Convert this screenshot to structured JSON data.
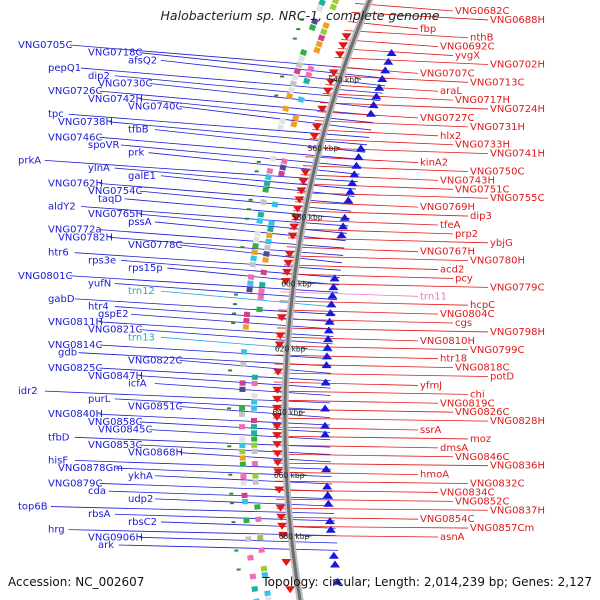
{
  "title": "Halobacterium sp. NRC-1, complete genome",
  "footer": {
    "accession": "Accession: NC_002607",
    "summary": "Topology: circular; Length: 2,014,239 bp; Genes: 2,127"
  },
  "colors": {
    "forward": "#1a1ad6",
    "reverse": "#e01818",
    "rna": "#1ea8d8",
    "pseudo": "#e878c0",
    "backbone": "#888888",
    "cds_marker": "#2a8a2a"
  },
  "ticks": [
    "540 kbp",
    "560 kbp",
    "580 kbp",
    "600 kbp",
    "620 kbp",
    "640 kbp",
    "660 kbp",
    "680 kbp"
  ],
  "left_labels": [
    {
      "t": "VNG0705C",
      "c": "fwd"
    },
    {
      "t": "VNG0718C",
      "c": "fwd"
    },
    {
      "t": "afsQ2",
      "c": "fwd"
    },
    {
      "t": "pepQ1",
      "c": "fwd"
    },
    {
      "t": "dip2",
      "c": "fwd"
    },
    {
      "t": "VNG0730C",
      "c": "fwd"
    },
    {
      "t": "VNG0726C",
      "c": "fwd"
    },
    {
      "t": "VNG0742H",
      "c": "fwd"
    },
    {
      "t": "VNG0740C",
      "c": "fwd"
    },
    {
      "t": "tpc",
      "c": "fwd"
    },
    {
      "t": "VNG0738H",
      "c": "fwd"
    },
    {
      "t": "tfbB",
      "c": "fwd"
    },
    {
      "t": "VNG0746C",
      "c": "fwd"
    },
    {
      "t": "spoVR",
      "c": "fwd"
    },
    {
      "t": "prk",
      "c": "fwd"
    },
    {
      "t": "prkA",
      "c": "fwd"
    },
    {
      "t": "ylnA",
      "c": "fwd"
    },
    {
      "t": "galE1",
      "c": "fwd"
    },
    {
      "t": "VNG0762H",
      "c": "fwd"
    },
    {
      "t": "VNG0754C",
      "c": "fwd"
    },
    {
      "t": "taqD",
      "c": "fwd"
    },
    {
      "t": "aldY2",
      "c": "fwd"
    },
    {
      "t": "VNG0765H",
      "c": "fwd"
    },
    {
      "t": "pssA",
      "c": "fwd"
    },
    {
      "t": "VNG0772a",
      "c": "fwd"
    },
    {
      "t": "VNG0782H",
      "c": "fwd"
    },
    {
      "t": "VNG0778C",
      "c": "fwd"
    },
    {
      "t": "htr6",
      "c": "fwd"
    },
    {
      "t": "rps3e",
      "c": "fwd"
    },
    {
      "t": "rps15p",
      "c": "fwd"
    },
    {
      "t": "VNG0801C",
      "c": "fwd"
    },
    {
      "t": "yufN",
      "c": "fwd"
    },
    {
      "t": "trn12",
      "c": "rna"
    },
    {
      "t": "gabD",
      "c": "fwd"
    },
    {
      "t": "htr4",
      "c": "fwd"
    },
    {
      "t": "gspE2",
      "c": "fwd"
    },
    {
      "t": "VNG0811H",
      "c": "fwd"
    },
    {
      "t": "VNG0821C",
      "c": "fwd"
    },
    {
      "t": "trn13",
      "c": "rna"
    },
    {
      "t": "VNG0814C",
      "c": "fwd"
    },
    {
      "t": "gdb",
      "c": "fwd"
    },
    {
      "t": "VNG0822C",
      "c": "fwd"
    },
    {
      "t": "VNG0825C",
      "c": "fwd"
    },
    {
      "t": "VNG0847H",
      "c": "fwd"
    },
    {
      "t": "icfA",
      "c": "fwd"
    },
    {
      "t": "idr2",
      "c": "fwd"
    },
    {
      "t": "purL",
      "c": "fwd"
    },
    {
      "t": "VNG0851C",
      "c": "fwd"
    },
    {
      "t": "VNG0840H",
      "c": "fwd"
    },
    {
      "t": "VNG0858C",
      "c": "fwd"
    },
    {
      "t": "VNG0845C",
      "c": "fwd"
    },
    {
      "t": "tfbD",
      "c": "fwd"
    },
    {
      "t": "VNG0853C",
      "c": "fwd"
    },
    {
      "t": "VNG0868H",
      "c": "fwd"
    },
    {
      "t": "hisF",
      "c": "fwd"
    },
    {
      "t": "VNG0878Gm",
      "c": "fwd"
    },
    {
      "t": "ykhA",
      "c": "fwd"
    },
    {
      "t": "VNG0879C",
      "c": "fwd"
    },
    {
      "t": "cda",
      "c": "fwd"
    },
    {
      "t": "udp2",
      "c": "fwd"
    },
    {
      "t": "top6B",
      "c": "fwd"
    },
    {
      "t": "rbsA",
      "c": "fwd"
    },
    {
      "t": "rbsC2",
      "c": "fwd"
    },
    {
      "t": "hrg",
      "c": "fwd"
    },
    {
      "t": "VNG0906H",
      "c": "fwd"
    },
    {
      "t": "ark",
      "c": "fwd"
    }
  ],
  "right_labels": [
    {
      "t": "VNG0682C",
      "c": "rev"
    },
    {
      "t": "VNG0688H",
      "c": "rev"
    },
    {
      "t": "fbp",
      "c": "rev"
    },
    {
      "t": "nthB",
      "c": "rev"
    },
    {
      "t": "VNG0692C",
      "c": "rev"
    },
    {
      "t": "yvgX",
      "c": "rev"
    },
    {
      "t": "VNG0702H",
      "c": "rev"
    },
    {
      "t": "VNG0707C",
      "c": "rev"
    },
    {
      "t": "VNG0713C",
      "c": "rev"
    },
    {
      "t": "araL",
      "c": "rev"
    },
    {
      "t": "VNG0717H",
      "c": "rev"
    },
    {
      "t": "VNG0724H",
      "c": "rev"
    },
    {
      "t": "VNG0727C",
      "c": "rev"
    },
    {
      "t": "VNG0731H",
      "c": "rev"
    },
    {
      "t": "hlx2",
      "c": "rev"
    },
    {
      "t": "VNG0733H",
      "c": "rev"
    },
    {
      "t": "VNG0741H",
      "c": "rev"
    },
    {
      "t": "kinA2",
      "c": "rev"
    },
    {
      "t": "VNG0750C",
      "c": "rev"
    },
    {
      "t": "VNG0743H",
      "c": "rev"
    },
    {
      "t": "VNG0751C",
      "c": "rev"
    },
    {
      "t": "VNG0755C",
      "c": "rev"
    },
    {
      "t": "VNG0769H",
      "c": "rev"
    },
    {
      "t": "dip3",
      "c": "rev"
    },
    {
      "t": "tfeA",
      "c": "rev"
    },
    {
      "t": "prp2",
      "c": "rev"
    },
    {
      "t": "ybjG",
      "c": "rev"
    },
    {
      "t": "VNG0767H",
      "c": "rev"
    },
    {
      "t": "VNG0780H",
      "c": "rev"
    },
    {
      "t": "acd2",
      "c": "rev"
    },
    {
      "t": "pcy",
      "c": "rev"
    },
    {
      "t": "VNG0779C",
      "c": "rev"
    },
    {
      "t": "trn11",
      "c": "pseudo"
    },
    {
      "t": "hcpC",
      "c": "rev"
    },
    {
      "t": "VNG0804C",
      "c": "rev"
    },
    {
      "t": "cgs",
      "c": "rev"
    },
    {
      "t": "VNG0798H",
      "c": "rev"
    },
    {
      "t": "VNG0810H",
      "c": "rev"
    },
    {
      "t": "VNG0799C",
      "c": "rev"
    },
    {
      "t": "htr18",
      "c": "rev"
    },
    {
      "t": "VNG0818C",
      "c": "rev"
    },
    {
      "t": "potD",
      "c": "rev"
    },
    {
      "t": "yfmJ",
      "c": "rev"
    },
    {
      "t": "chi",
      "c": "rev"
    },
    {
      "t": "VNG0819C",
      "c": "rev"
    },
    {
      "t": "VNG0826C",
      "c": "rev"
    },
    {
      "t": "VNG0828H",
      "c": "rev"
    },
    {
      "t": "ssrA",
      "c": "rev"
    },
    {
      "t": "moz",
      "c": "rev"
    },
    {
      "t": "dmsA",
      "c": "rev"
    },
    {
      "t": "VNG0846C",
      "c": "rev"
    },
    {
      "t": "VNG0836H",
      "c": "rev"
    },
    {
      "t": "hmoA",
      "c": "rev"
    },
    {
      "t": "VNG0832C",
      "c": "rev"
    },
    {
      "t": "VNG0834C",
      "c": "rev"
    },
    {
      "t": "VNG0852C",
      "c": "rev"
    },
    {
      "t": "VNG0837H",
      "c": "rev"
    },
    {
      "t": "VNG0854C",
      "c": "rev"
    },
    {
      "t": "VNG0857Cm",
      "c": "rev"
    },
    {
      "t": "asnA",
      "c": "rev"
    }
  ]
}
